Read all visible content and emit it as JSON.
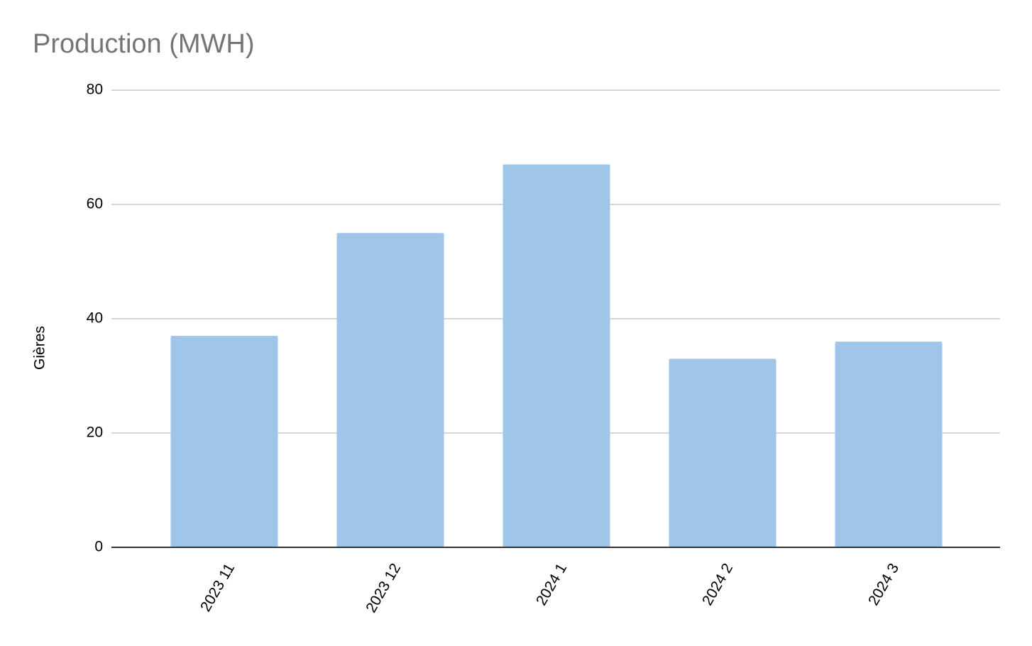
{
  "chart_data": {
    "type": "bar",
    "title": "Production (MWH)",
    "y_label": "Gières",
    "categories": [
      "2023 11",
      "2023 12",
      "2024 1",
      "2024 2",
      "2024 3"
    ],
    "values": [
      37,
      55,
      67,
      33,
      36
    ],
    "color": "#9fc5e8",
    "ylim": [
      0,
      80
    ],
    "yticks": [
      0,
      20,
      40,
      60,
      80
    ],
    "grid": true
  }
}
